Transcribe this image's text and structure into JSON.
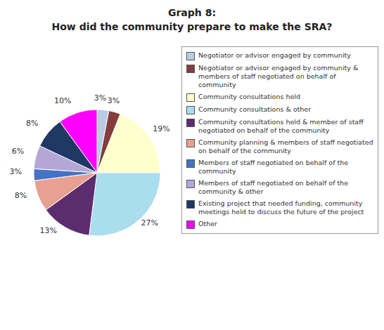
{
  "chart_data": {
    "type": "pie",
    "title": "Graph 8:",
    "subtitle": "How did the community prepare to make the SRA?",
    "categories": [
      "Negotiator or advisor engaged by community",
      "Negotiator or advisor engaged by community &\nmembers of staff negotiated on behalf of\ncommunity",
      "Community consultations held",
      "Community consultations & other",
      "Community consultations held & member of staff\nnegotiated on behalf of the community",
      "Community planning & members of staff negotiated\non behalf of the community",
      "Members of staff negotiated on behalf of the\ncommunity",
      "Members of staff negotiated on behalf of the\ncommunity & other",
      "Existing project that needed funding, community\nmeetings held to discuss the future of the project",
      "Other"
    ],
    "values": [
      3,
      3,
      19,
      27,
      13,
      8,
      3,
      6,
      8,
      10
    ],
    "value_labels": [
      "3%",
      "3%",
      "19%",
      "27%",
      "13%",
      "8%",
      "3%",
      "6%",
      "8%",
      "10%"
    ],
    "colors": [
      "#b8cce4",
      "#843c3c",
      "#ffffcc",
      "#aaddee",
      "#5c2d6e",
      "#e8a090",
      "#4472c4",
      "#b4a7d6",
      "#1f3864",
      "#ff00ff"
    ],
    "data_labels": true,
    "legend": "right"
  }
}
